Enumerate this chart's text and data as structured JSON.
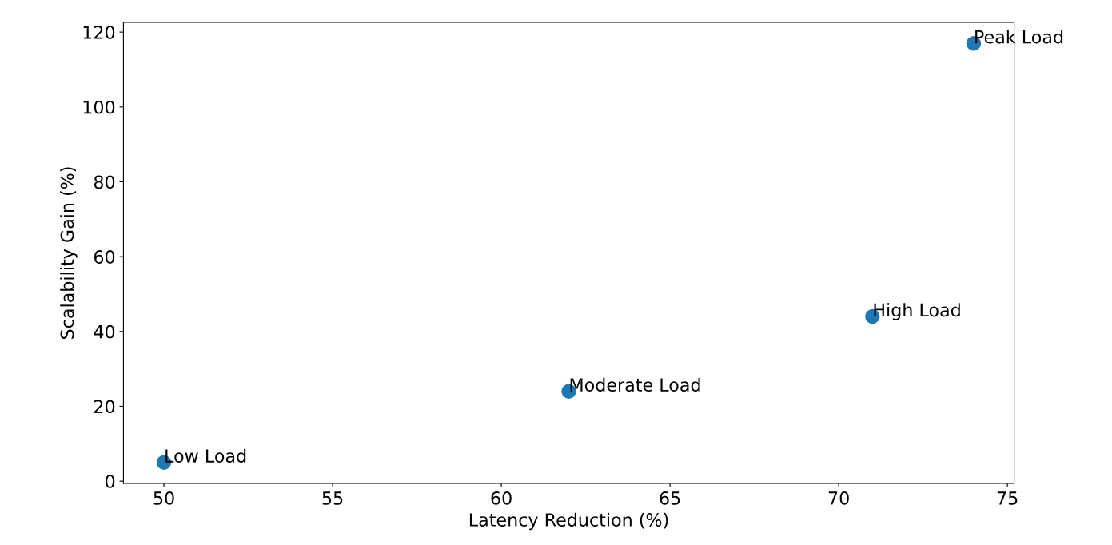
{
  "chart_data": {
    "type": "scatter",
    "xlabel": "Latency Reduction (%)",
    "ylabel": "Scalability Gain (%)",
    "x": [
      50,
      62,
      71,
      74
    ],
    "series": [
      {
        "color": "#1f77b4",
        "values": [
          5,
          24,
          44,
          117
        ]
      }
    ],
    "annotations": [
      {
        "text": "Low Load",
        "x": 50,
        "y": 5
      },
      {
        "text": "Moderate Load",
        "x": 62,
        "y": 24
      },
      {
        "text": "High Load",
        "x": 71,
        "y": 44
      },
      {
        "text": "Peak Load",
        "x": 74,
        "y": 117
      }
    ],
    "xlim": [
      48.8,
      75.2
    ],
    "xticks": [
      50,
      55,
      60,
      65,
      70,
      75
    ],
    "ylim": [
      -0.6,
      122.6
    ],
    "yticks": [
      0,
      20,
      40,
      60,
      80,
      100,
      120
    ],
    "grid": false,
    "legend": false
  }
}
